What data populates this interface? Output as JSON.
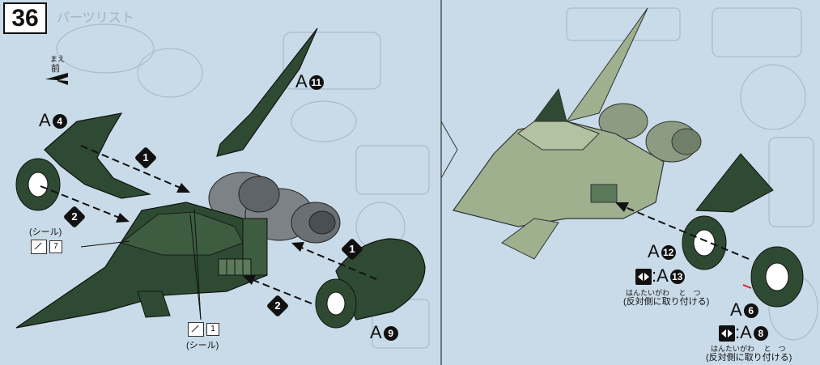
{
  "step": {
    "number": "36"
  },
  "direction": {
    "ruby": "まえ",
    "label": "前"
  },
  "header_faint": {
    "parts_list": "パーツリスト"
  },
  "parts": {
    "a4": {
      "letter": "A",
      "num": "4"
    },
    "a11": {
      "letter": "A",
      "num": "11"
    },
    "a9": {
      "letter": "A",
      "num": "9"
    },
    "a12": {
      "letter": "A",
      "num": "12"
    },
    "a13": {
      "letter": "A",
      "num": "13"
    },
    "a6": {
      "letter": "A",
      "num": "6"
    },
    "a8": {
      "letter": "A",
      "num": "8"
    }
  },
  "steps": {
    "s1a": "1",
    "s2a": "2",
    "s1b": "1",
    "s2b": "2"
  },
  "seals": {
    "seal_top": {
      "label": "(シール)",
      "number": "7"
    },
    "seal_bottom": {
      "label": "(シール)",
      "number": "1"
    }
  },
  "notes": {
    "mirror_text_1": "(反対側に取り付ける)",
    "mirror_text_2": "(反対側に取り付ける)",
    "ruby_1": "はんたいがわ　 と　つ",
    "ruby_2": "はんたいがわ　 と　つ",
    "colon": ":"
  },
  "colors": {
    "background": "#c9dbe8",
    "dark_green": "#2f4a33",
    "light_green": "#9fb08f",
    "gray_engine": "#7d8286"
  }
}
